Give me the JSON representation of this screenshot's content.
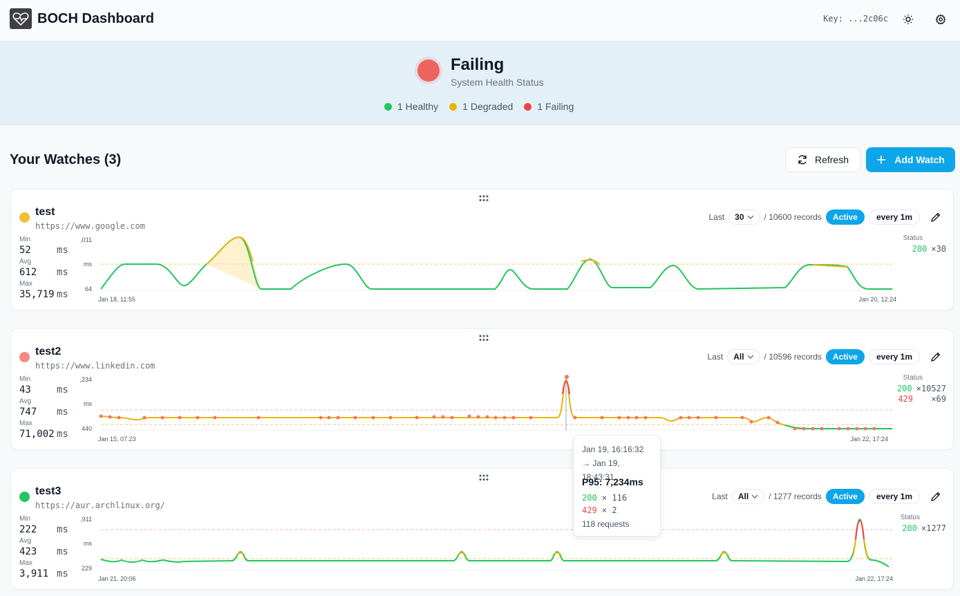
{
  "header": {
    "app_title": "BOCH Dashboard",
    "api_key_label": "Key: ...2c06c",
    "icons": {
      "logo": "heart-pulse-icon",
      "theme": "sun-icon",
      "settings": "gear-icon"
    }
  },
  "banner": {
    "status": "Failing",
    "subtitle": "System Health Status",
    "counts": [
      {
        "label": "1 Healthy",
        "color": "#22c55e"
      },
      {
        "label": "1 Degraded",
        "color": "#eab308"
      },
      {
        "label": "1 Failing",
        "color": "#ef4444"
      }
    ]
  },
  "watches": {
    "title": "Your Watches (3)",
    "refresh_label": "Refresh",
    "add_label": "Add Watch",
    "items": [
      {
        "name": "test",
        "url": "https://www.google.com",
        "status_color": "#f0c030",
        "stats": {
          "min_label": "Min",
          "min": "52",
          "avg_label": "Avg",
          "avg": "612",
          "max_label": "Max",
          "max": "35,719",
          "unit": "ms"
        },
        "last_label": "Last",
        "range": "30",
        "records": "/ 10600 records",
        "state": "Active",
        "interval": "every 1m",
        "codes_label": "Status",
        "codes": [
          {
            "code": "200",
            "count": "×30",
            "color": "#22c55e"
          }
        ],
        "chart": {
          "y_top": "2,011",
          "y_mid": "ms",
          "y_bottom": "64",
          "x_start": "Jan 18, 11:55",
          "x_end": "Jan 20, 12:24"
        }
      },
      {
        "name": "test2",
        "url": "https://www.linkedin.com",
        "status_color": "#f28b82",
        "stats": {
          "min_label": "Min",
          "min": "43",
          "avg_label": "Avg",
          "avg": "747",
          "max_label": "Max",
          "max": "71,002",
          "unit": "ms"
        },
        "last_label": "Last",
        "range": "All",
        "records": "/ 10596 records",
        "state": "Active",
        "interval": "every 1m",
        "codes_label": "Status",
        "codes": [
          {
            "code": "200",
            "count": "×10527",
            "color": "#22c55e"
          },
          {
            "code": "429",
            "count": "×69",
            "color": "#ef4444"
          }
        ],
        "chart": {
          "y_top": "7,234",
          "y_mid": "ms",
          "y_bottom": "440",
          "x_start": "Jan 15, 07:23",
          "x_end": "Jan 22, 17:24"
        }
      },
      {
        "name": "test3",
        "url": "https://aur.archlinux.org/",
        "status_color": "#22c55e",
        "stats": {
          "min_label": "Min",
          "min": "222",
          "avg_label": "Avg",
          "avg": "423",
          "max_label": "Max",
          "max": "3,911",
          "unit": "ms"
        },
        "last_label": "Last",
        "range": "All",
        "records": "/ 1277 records",
        "state": "Active",
        "interval": "every 1m",
        "codes_label": "Status",
        "codes": [
          {
            "code": "200",
            "count": "×1277",
            "color": "#22c55e"
          }
        ],
        "chart": {
          "y_top": "3,911",
          "y_mid": "ms",
          "y_bottom": "229",
          "x_start": "Jan 21, 20:06",
          "x_end": "Jan 22, 17:24"
        }
      }
    ]
  },
  "tooltip": {
    "from": "Jan 19, 16:16:32",
    "to": "→ Jan 19, 18:43:31",
    "p95": "P95: 7,234ms",
    "codes": [
      {
        "code": "200",
        "sep": "×",
        "count": "116",
        "color": "#22c55e"
      },
      {
        "code": "429",
        "sep": "×",
        "count": "2",
        "color": "#ef4444"
      }
    ],
    "requests": "118 requests"
  }
}
